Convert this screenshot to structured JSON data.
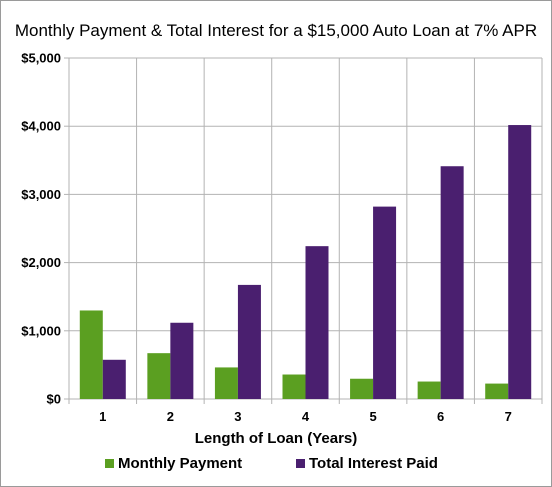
{
  "chart_data": {
    "type": "bar",
    "title": "Monthly Payment & Total Interest for a $15,000 Auto Loan at 7% APR",
    "xlabel": "Length of Loan (Years)",
    "ylabel": "",
    "categories": [
      "1",
      "2",
      "3",
      "4",
      "5",
      "6",
      "7"
    ],
    "series": [
      {
        "name": "Monthly Payment",
        "color": "#5b9f21",
        "values": [
          1298,
          672,
          463,
          359,
          297,
          256,
          226
        ]
      },
      {
        "name": "Total Interest Paid",
        "color": "#4a1f6f",
        "values": [
          575,
          1118,
          1673,
          2241,
          2821,
          3413,
          4017
        ]
      }
    ],
    "ylim": [
      0,
      5000
    ],
    "yticks": [
      0,
      1000,
      2000,
      3000,
      4000,
      5000
    ],
    "ytick_labels": [
      "$0",
      "$1,000",
      "$2,000",
      "$3,000",
      "$4,000",
      "$5,000"
    ],
    "grid": true,
    "legend_position": "bottom",
    "colors": {
      "grid": "#b3b3b3",
      "axis": "#b3b3b3"
    }
  }
}
